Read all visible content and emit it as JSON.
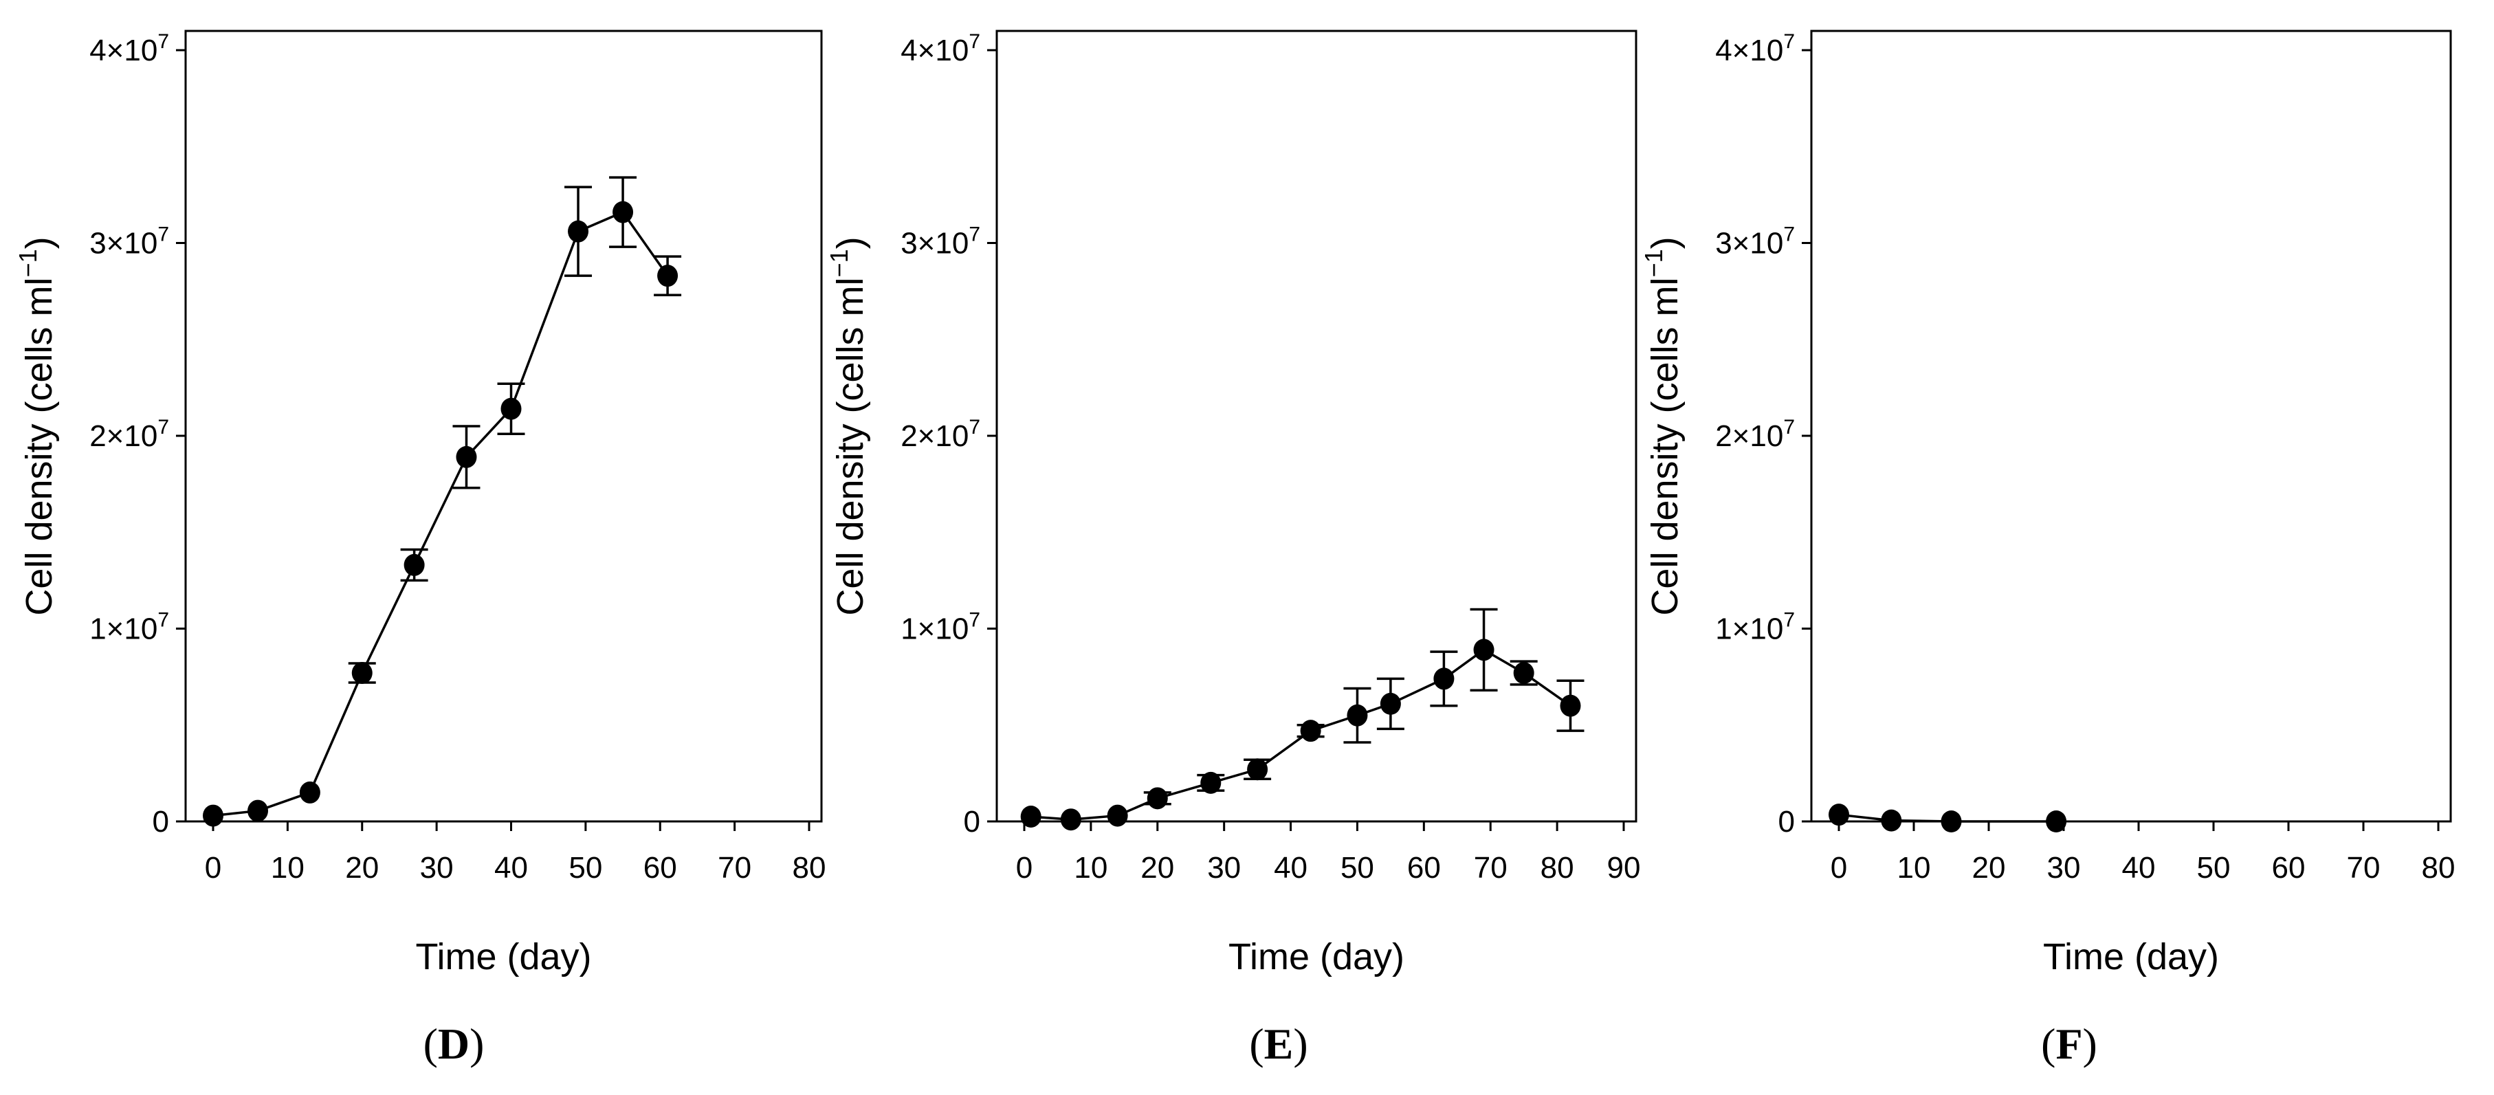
{
  "chart_data": [
    {
      "type": "line",
      "panel_label": "D",
      "xlabel": "Time (day)",
      "ylabel": "Cell density (cells ml−1)",
      "xlim": [
        0,
        80
      ],
      "ylim": [
        0,
        40000000
      ],
      "xticks": [
        "0",
        "10",
        "20",
        "30",
        "40",
        "50",
        "60",
        "70",
        "80"
      ],
      "yticks": [
        "0",
        "1×10",
        "2×10",
        "3×10",
        "4×10"
      ],
      "ytick_exponent": "7",
      "series": [
        {
          "x": [
            0,
            6,
            13,
            20,
            27,
            34,
            40,
            49,
            55,
            61
          ],
          "y": [
            300000,
            550000,
            1500000,
            7700000,
            13300000,
            18900000,
            21400000,
            30600000,
            31600000,
            28300000
          ],
          "error": [
            0,
            0,
            0,
            500000,
            800000,
            1600000,
            1300000,
            2300000,
            1800000,
            1000000
          ]
        }
      ]
    },
    {
      "type": "line",
      "panel_label": "E",
      "xlabel": "Time (day)",
      "ylabel": "Cell density (cells ml−1)",
      "xlim": [
        0,
        90
      ],
      "ylim": [
        0,
        40000000
      ],
      "xticks": [
        "0",
        "10",
        "20",
        "30",
        "40",
        "50",
        "60",
        "70",
        "80",
        "90"
      ],
      "yticks": [
        "0",
        "1×10",
        "2×10",
        "3×10",
        "4×10"
      ],
      "ytick_exponent": "7",
      "series": [
        {
          "x": [
            1,
            7,
            14,
            20,
            28,
            35,
            43,
            50,
            55,
            63,
            69,
            75,
            82
          ],
          "y": [
            250000,
            100000,
            300000,
            1200000,
            2000000,
            2700000,
            4700000,
            5500000,
            6100000,
            7400000,
            8900000,
            7700000,
            6000000
          ],
          "error": [
            0,
            0,
            0,
            300000,
            400000,
            500000,
            300000,
            1400000,
            1300000,
            1400000,
            2100000,
            600000,
            1300000
          ]
        }
      ]
    },
    {
      "type": "line",
      "panel_label": "F",
      "xlabel": "Time (day)",
      "ylabel": "Cell density (cells ml−1)",
      "xlim": [
        0,
        80
      ],
      "ylim": [
        0,
        40000000
      ],
      "xticks": [
        "0",
        "10",
        "20",
        "30",
        "40",
        "50",
        "60",
        "70",
        "80"
      ],
      "yticks": [
        "0",
        "1×10",
        "2×10",
        "3×10",
        "4×10"
      ],
      "ytick_exponent": "7",
      "series": [
        {
          "x": [
            0,
            7,
            15,
            29
          ],
          "y": [
            350000,
            50000,
            0,
            0
          ],
          "error": [
            0,
            0,
            0,
            0
          ]
        }
      ]
    }
  ]
}
